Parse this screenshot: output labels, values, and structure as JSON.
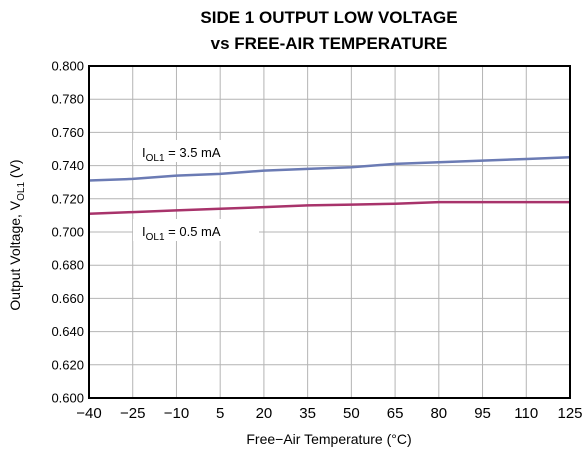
{
  "chart_data": {
    "type": "line",
    "title_line1": "SIDE 1 OUTPUT LOW VOLTAGE",
    "title_line2": "vs FREE-AIR TEMPERATURE",
    "xlabel": "Free−Air Temperature (°C)",
    "ylabel": {
      "main": "Output Voltage, V",
      "sub": "OL1",
      "unit": " (V)"
    },
    "xlim": [
      -40,
      125
    ],
    "ylim": [
      0.6,
      0.8
    ],
    "x_ticks": [
      -40,
      -25,
      -10,
      5,
      20,
      35,
      50,
      65,
      80,
      95,
      110,
      125
    ],
    "x_tick_labels": [
      "−40",
      "−25",
      "−10",
      "5",
      "20",
      "35",
      "50",
      "65",
      "80",
      "95",
      "110",
      "125"
    ],
    "y_ticks": [
      0.6,
      0.62,
      0.64,
      0.66,
      0.68,
      0.7,
      0.72,
      0.74,
      0.76,
      0.78,
      0.8
    ],
    "y_tick_labels": [
      "0.600",
      "0.620",
      "0.640",
      "0.660",
      "0.680",
      "0.700",
      "0.720",
      "0.740",
      "0.760",
      "0.780",
      "0.800"
    ],
    "grid": true,
    "series": [
      {
        "name": "I_OL1 = 3.5 mA",
        "color": "#6b7bb4",
        "x": [
          -40,
          -25,
          -10,
          5,
          20,
          35,
          50,
          65,
          80,
          95,
          110,
          125
        ],
        "values": [
          0.731,
          0.732,
          0.734,
          0.735,
          0.737,
          0.738,
          0.739,
          0.741,
          0.742,
          0.743,
          0.744,
          0.745
        ]
      },
      {
        "name": "I_OL1 = 0.5 mA",
        "color": "#a8336b",
        "x": [
          -40,
          -25,
          -10,
          5,
          20,
          35,
          50,
          65,
          80,
          95,
          110,
          125
        ],
        "values": [
          0.711,
          0.712,
          0.713,
          0.714,
          0.715,
          0.716,
          0.7165,
          0.717,
          0.718,
          0.718,
          0.718,
          0.718
        ]
      }
    ],
    "annotations": [
      {
        "main": "I",
        "sub": "OL1",
        "rest": " = 3.5 mA",
        "series": 0
      },
      {
        "main": "I",
        "sub": "OL1",
        "rest": " = 0.5 mA",
        "series": 1
      }
    ]
  }
}
